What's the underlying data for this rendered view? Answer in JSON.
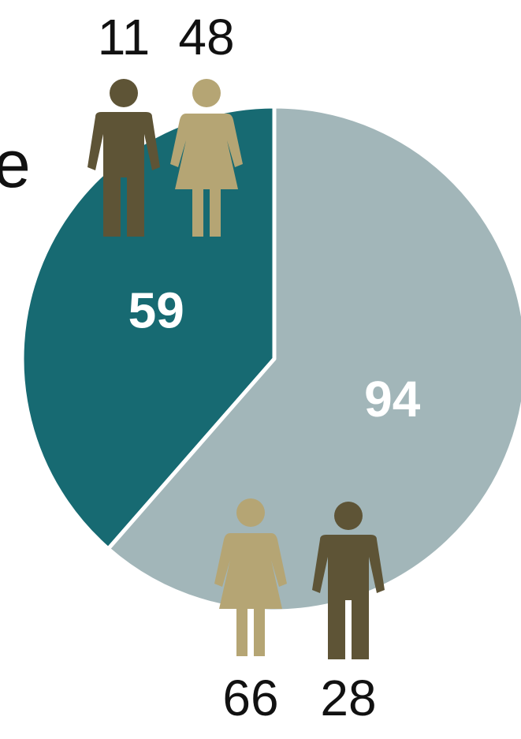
{
  "chart_data": {
    "type": "pie",
    "title": "e",
    "values": [
      59,
      94
    ],
    "colors": [
      "#176a72",
      "#a2b6b9"
    ],
    "breakdown": [
      [
        11,
        48
      ],
      [
        66,
        28
      ]
    ],
    "breakdown_icons": [
      [
        "male",
        "female"
      ],
      [
        "female",
        "male"
      ]
    ],
    "breakdown_colors": [
      [
        "#5e5436",
        "#b5a574"
      ],
      [
        "#b5a574",
        "#5e5436"
      ]
    ]
  }
}
